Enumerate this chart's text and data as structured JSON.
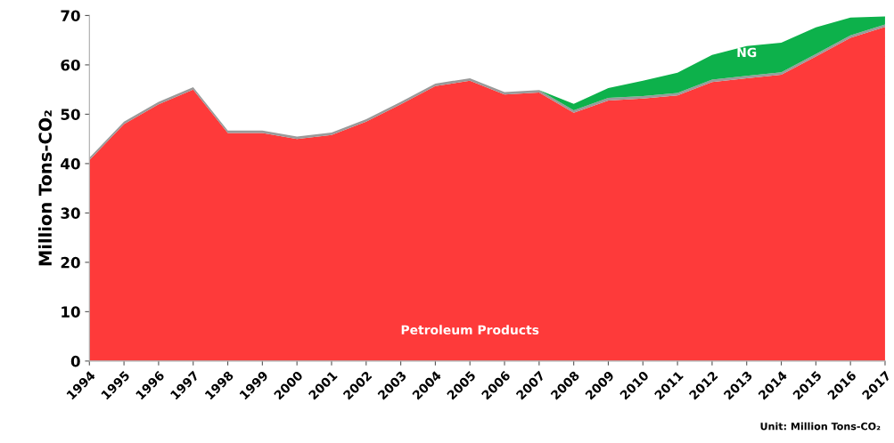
{
  "chart_data": {
    "type": "area",
    "stacked": true,
    "ylabel": "Million Tons-CO₂",
    "x": [
      1994,
      1995,
      1996,
      1997,
      1998,
      1999,
      2000,
      2001,
      2002,
      2003,
      2004,
      2005,
      2006,
      2007,
      2008,
      2009,
      2010,
      2011,
      2012,
      2013,
      2014,
      2015,
      2016,
      2017
    ],
    "series": [
      {
        "name": "Petroleum Products",
        "color": "#fe3a3a",
        "values": [
          40.7,
          48,
          52,
          55,
          46.2,
          46.2,
          45,
          45.8,
          48.5,
          52,
          55.7,
          56.8,
          54,
          54.4,
          50.3,
          52.8,
          53.2,
          53.8,
          56.5,
          57.3,
          58,
          61.7,
          65.5,
          67.7
        ]
      },
      {
        "color": "#9a9a9a",
        "values": [
          0.5,
          0.5,
          0.5,
          0.5,
          0.5,
          0.5,
          0.5,
          0.5,
          0.5,
          0.5,
          0.5,
          0.5,
          0.5,
          0.5,
          0.5,
          0.5,
          0.5,
          0.5,
          0.5,
          0.5,
          0.5,
          0.5,
          0.5,
          0.5
        ]
      },
      {
        "name": "NG",
        "color": "#0db14b",
        "values": [
          0,
          0,
          0,
          0,
          0,
          0,
          0,
          0,
          0,
          0,
          0,
          0,
          0,
          0,
          1.3,
          2,
          3.1,
          4.1,
          5,
          6,
          6,
          5.4,
          3.6,
          1.6
        ]
      }
    ],
    "xlim": [
      1994,
      2017
    ],
    "xticks": [
      1994,
      1995,
      1996,
      1997,
      1998,
      1999,
      2000,
      2001,
      2002,
      2003,
      2004,
      2005,
      2006,
      2007,
      2008,
      2009,
      2010,
      2011,
      2012,
      2013,
      2014,
      2015,
      2016,
      2017
    ],
    "ylim": [
      0,
      70
    ],
    "yticks": [
      0,
      10,
      20,
      30,
      40,
      50,
      60,
      70
    ],
    "grid": false,
    "legend": false,
    "annotations": [
      "Unit: Million Tons-CO₂"
    ]
  }
}
